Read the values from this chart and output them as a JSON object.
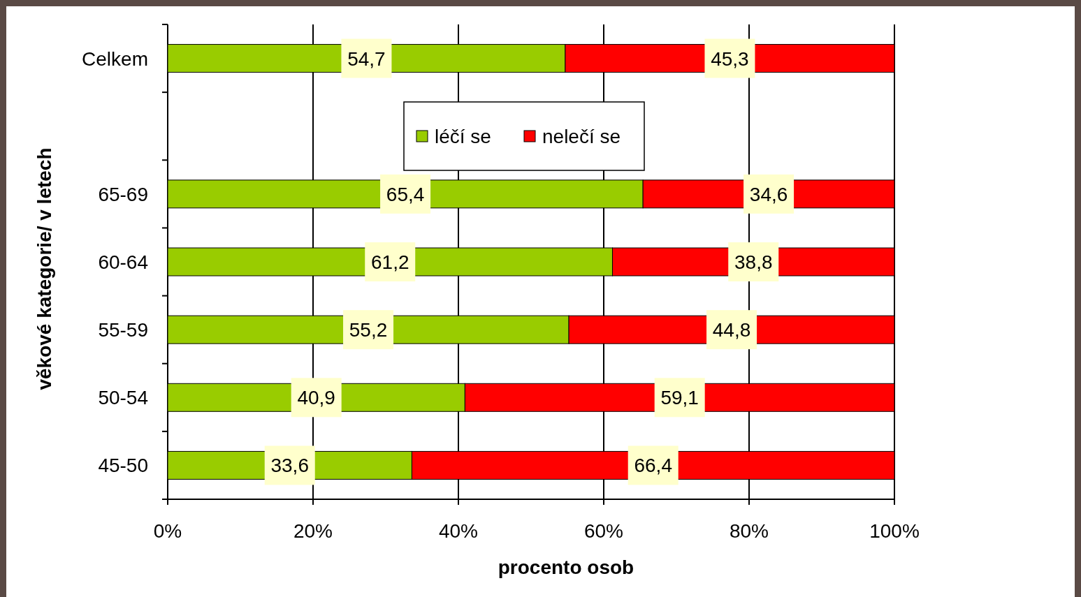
{
  "chart_data": {
    "type": "bar",
    "orientation": "horizontal",
    "stacked": true,
    "xlabel": "procento osob",
    "ylabel": "věkové kategorie/ v letech",
    "categories": [
      "Celkem",
      null,
      "65-69",
      "60-64",
      "55-59",
      "50-54",
      "45-50"
    ],
    "series": [
      {
        "name": "léčí se",
        "color": "#99cc00",
        "values": [
          54.7,
          null,
          65.4,
          61.2,
          55.2,
          40.9,
          33.6
        ],
        "value_labels": [
          "54,7",
          null,
          "65,4",
          "61,2",
          "55,2",
          "40,9",
          "33,6"
        ]
      },
      {
        "name": "nelečí se",
        "color": "#ff0000",
        "values": [
          45.3,
          null,
          34.6,
          38.8,
          44.8,
          59.1,
          66.4
        ],
        "value_labels": [
          "45,3",
          null,
          "34,6",
          "38,8",
          "44,8",
          "59,1",
          "66,4"
        ]
      }
    ],
    "xlim": [
      0,
      100
    ],
    "xticks": [
      {
        "value": 0,
        "label": "0%"
      },
      {
        "value": 20,
        "label": "20%"
      },
      {
        "value": 40,
        "label": "40%"
      },
      {
        "value": 60,
        "label": "60%"
      },
      {
        "value": 80,
        "label": "80%"
      },
      {
        "value": 100,
        "label": "100%"
      }
    ],
    "grid": "x",
    "legend": "top"
  }
}
